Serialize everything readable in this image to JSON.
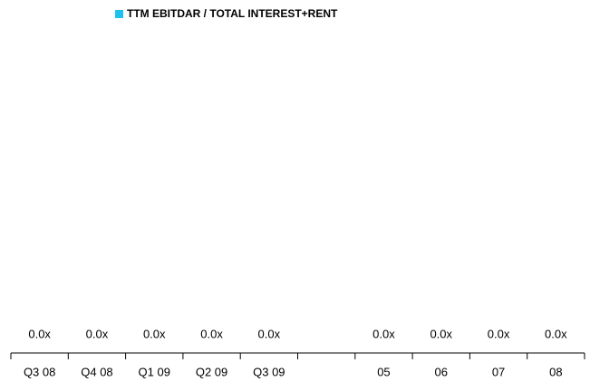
{
  "chart_data": {
    "type": "bar",
    "categories": [
      "Q3 08",
      "Q4 08",
      "Q1 09",
      "Q2 09",
      "Q3 09",
      null,
      "05",
      "06",
      "07",
      "08"
    ],
    "series": [
      {
        "name": "TTM EBITDAR / TOTAL INTEREST+RENT",
        "color": "#1fc0f0",
        "values": [
          0,
          0,
          0,
          0,
          0,
          null,
          0,
          0,
          0,
          0
        ],
        "value_labels": [
          "0.0x",
          "0.0x",
          "0.0x",
          "0.0x",
          "0.0x",
          null,
          "0.0x",
          "0.0x",
          "0.0x",
          "0.0x"
        ]
      }
    ]
  }
}
